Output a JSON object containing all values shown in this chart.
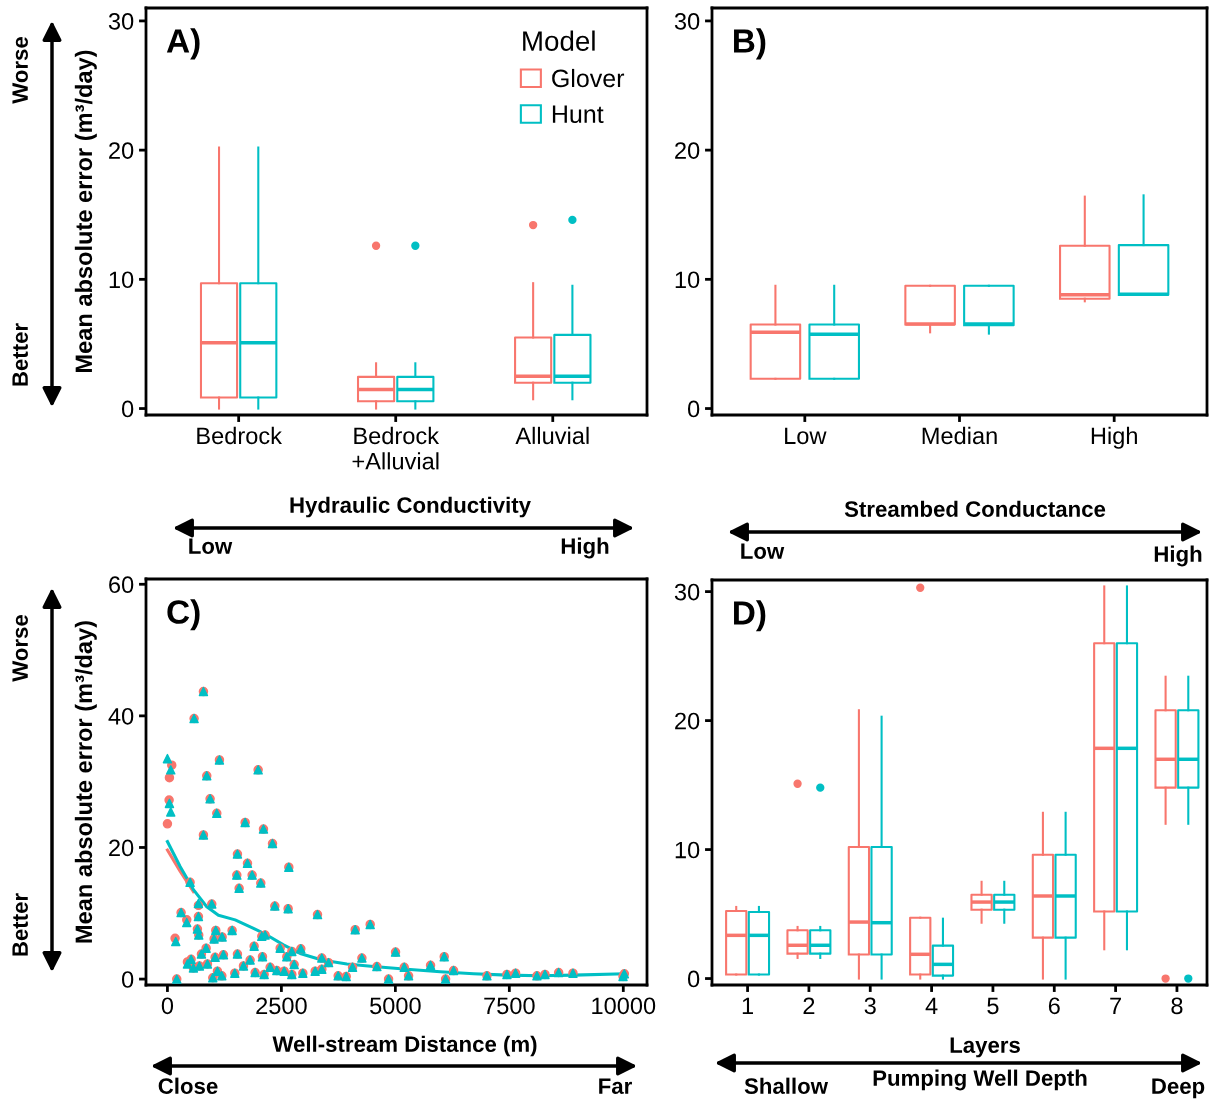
{
  "chart_data": [
    {
      "type": "box",
      "title": "A)",
      "categories": [
        "Bedrock",
        "Bedrock\n+Alluvial",
        "Alluvial"
      ],
      "ylabel": "Mean absolute error (m³/day)",
      "xlabel": "Hydraulic Conductivity",
      "ylim": [
        -0.5,
        31
      ],
      "yticks": [
        0,
        10,
        20,
        30
      ],
      "legend": "top right",
      "legend_title": "Model",
      "annotations": [
        "Worse",
        "Better",
        "Low",
        "High"
      ],
      "series": [
        {
          "name": "Glover",
          "color": "#f8766d",
          "boxes": [
            {
              "low": 0,
              "q1": 0.85,
              "median": 5.1,
              "q3": 9.7,
              "high": 20.2
            },
            {
              "low": 0,
              "q1": 0.56,
              "median": 1.47,
              "q3": 2.45,
              "high": 3.5,
              "outliers": [
                12.6
              ]
            },
            {
              "low": 0.72,
              "q1": 2.0,
              "median": 2.5,
              "q3": 5.5,
              "high": 9.7,
              "outliers": [
                14.2
              ]
            }
          ]
        },
        {
          "name": "Hunt",
          "color": "#00bfc4",
          "boxes": [
            {
              "low": 0,
              "q1": 0.85,
              "median": 5.1,
              "q3": 9.7,
              "high": 20.2
            },
            {
              "low": 0,
              "q1": 0.56,
              "median": 1.47,
              "q3": 2.45,
              "high": 3.5,
              "outliers": [
                12.6
              ]
            },
            {
              "low": 0.72,
              "q1": 2.0,
              "median": 2.5,
              "q3": 5.7,
              "high": 9.5,
              "outliers": [
                14.6
              ]
            }
          ]
        }
      ]
    },
    {
      "type": "box",
      "title": "B)",
      "categories": [
        "Low",
        "Median",
        "High"
      ],
      "xlabel": "Streambed Conductance",
      "ylim": [
        -0.5,
        31
      ],
      "yticks": [
        0,
        10,
        20,
        30
      ],
      "annotations": [
        "Low",
        "High"
      ],
      "series": [
        {
          "color": "#f8766d",
          "boxes": [
            {
              "low": 2.3,
              "q1": 2.3,
              "median": 5.9,
              "q3": 6.5,
              "high": 9.5
            },
            {
              "low": 5.9,
              "q1": 6.5,
              "median": 6.55,
              "q3": 9.5,
              "high": 9.5
            },
            {
              "low": 8.3,
              "q1": 8.5,
              "median": 8.8,
              "q3": 12.6,
              "high": 16.4
            }
          ]
        },
        {
          "color": "#00bfc4",
          "boxes": [
            {
              "low": 2.3,
              "q1": 2.3,
              "median": 5.75,
              "q3": 6.5,
              "high": 9.5
            },
            {
              "low": 5.8,
              "q1": 6.45,
              "median": 6.55,
              "q3": 9.5,
              "high": 9.5
            },
            {
              "low": 8.8,
              "q1": 8.8,
              "median": 8.85,
              "q3": 12.65,
              "high": 16.5
            }
          ]
        }
      ]
    },
    {
      "type": "scatter",
      "title": "C)",
      "ylabel": "Mean absolute error (m³/day)",
      "xlabel": "Well-stream Distance (m)",
      "xlim": [
        -470,
        10520
      ],
      "xticks": [
        0,
        2500,
        5000,
        7500,
        10000
      ],
      "ylim": [
        -0.9,
        60.8
      ],
      "yticks": [
        0,
        20,
        40,
        60
      ],
      "annotations": [
        "Worse",
        "Better",
        "Close",
        "Far"
      ],
      "series": [
        {
          "type": "scatter",
          "marker": "circle",
          "color": "#f8766d",
          "x": [
            0,
            95,
            44,
            37,
            790,
            585,
            1141,
            863,
            936,
            1083,
            1990,
            790,
            1705,
            2107,
            2305,
            1536,
            1756,
            1522,
            1858,
            1573,
            2048,
            2663,
            497,
            2356,
            2648,
            3292,
            4448,
            4119,
            300,
            424,
            168,
            680,
            680,
            973,
            658,
            687,
            1061,
            1024,
            1200,
            849,
            746,
            519,
            439,
            570,
            702,
            878,
            1046,
            1229,
            1097,
            1193,
            995,
            205,
            1419,
            1536,
            1902,
            2085,
            2070,
            2143,
            1814,
            1668,
            1478,
            1924,
            2122,
            2253,
            2400,
            2473,
            2619,
            2729,
            2780,
            2561,
            2729,
            2926,
            2970,
            3241,
            3387,
            3387,
            3534,
            3746,
            3922,
            4061,
            4266,
            4595,
            4851,
            5004,
            5195,
            5290,
            5772,
            6072,
            6102,
            6277,
            7009,
            7448,
            7638,
            8106,
            8282,
            8582,
            8896,
            9994,
            10023
          ],
          "values": [
            23.6,
            32.5,
            30.6,
            27.2,
            43.7,
            39.6,
            33.3,
            30.9,
            27.4,
            25.2,
            31.8,
            21.9,
            23.8,
            22.8,
            20.6,
            19.0,
            17.6,
            15.8,
            15.8,
            13.8,
            14.6,
            17.0,
            14.7,
            11.1,
            10.7,
            9.8,
            8.3,
            7.5,
            10.1,
            9.0,
            6.2,
            9.5,
            11.2,
            11.4,
            7.6,
            6.7,
            7.4,
            6.1,
            6.4,
            4.7,
            3.8,
            3.0,
            2.6,
            1.7,
            2.0,
            2.3,
            3.3,
            3.7,
            1.2,
            0.5,
            0.2,
            0,
            7.4,
            3.8,
            5.0,
            3.4,
            6.5,
            6.7,
            2.9,
            2.0,
            0.9,
            1.0,
            0.7,
            1.8,
            1.3,
            4.7,
            3.4,
            4.2,
            2.2,
            1.2,
            0.7,
            4.6,
            0.9,
            1.2,
            3.2,
            1.5,
            2.5,
            0.5,
            0.4,
            1.8,
            3.2,
            1.9,
            0,
            4.1,
            1.8,
            0.5,
            2.1,
            3.4,
            0,
            1.3,
            0.5,
            0.7,
            0.9,
            0.5,
            0.7,
            1.0,
            0.9,
            0.4,
            0.8
          ]
        },
        {
          "type": "scatter",
          "marker": "triangle",
          "color": "#00bfc4",
          "x": [
            0,
            73,
            44,
            73,
            790,
            585,
            1141,
            863,
            936,
            1083,
            1990,
            790,
            1705,
            2107,
            2305,
            1536,
            1756,
            1522,
            1858,
            1573,
            2048,
            2663,
            497,
            2356,
            2648,
            3292,
            4448,
            4119,
            300,
            424,
            183,
            680,
            680,
            973,
            658,
            687,
            1061,
            1024,
            1200,
            849,
            746,
            519,
            439,
            570,
            702,
            878,
            1046,
            1229,
            1097,
            1193,
            995,
            205,
            1419,
            1536,
            1902,
            2085,
            2070,
            2143,
            1814,
            1668,
            1478,
            1924,
            2122,
            2253,
            2400,
            2473,
            2619,
            2729,
            2780,
            2561,
            2729,
            2926,
            2970,
            3241,
            3387,
            3387,
            3534,
            3746,
            3922,
            4061,
            4266,
            4595,
            4851,
            5004,
            5195,
            5290,
            5772,
            6072,
            6102,
            6277,
            7009,
            7448,
            7638,
            8106,
            8282,
            8582,
            8896,
            9994,
            10023
          ],
          "values": [
            33.5,
            31.8,
            26.7,
            25.4,
            43.7,
            39.6,
            33.3,
            30.9,
            27.4,
            25.2,
            31.8,
            21.9,
            23.8,
            22.8,
            20.6,
            19.0,
            17.6,
            15.8,
            15.8,
            13.8,
            14.6,
            17.0,
            14.7,
            11.1,
            10.7,
            9.8,
            8.3,
            7.5,
            10.1,
            8.6,
            5.7,
            9.5,
            11.5,
            11.4,
            7.6,
            6.7,
            7.4,
            6.1,
            6.4,
            4.7,
            3.8,
            3.0,
            2.3,
            1.7,
            2.0,
            2.3,
            3.3,
            3.7,
            1.2,
            0.5,
            0.2,
            0,
            7.4,
            3.8,
            5.0,
            3.4,
            6.5,
            6.7,
            2.9,
            2.0,
            0.9,
            1.0,
            0.7,
            1.8,
            1.3,
            4.7,
            3.4,
            4.2,
            2.2,
            1.2,
            0.7,
            4.6,
            0.9,
            1.2,
            3.2,
            1.5,
            2.5,
            0.5,
            0.4,
            1.8,
            3.2,
            1.9,
            0,
            4.1,
            1.8,
            0.5,
            2.1,
            3.4,
            0,
            1.3,
            0.5,
            0.7,
            0.9,
            0.5,
            0.7,
            1.0,
            0.9,
            0.4,
            0.8
          ]
        },
        {
          "type": "line",
          "color": "#f8766d",
          "x": [
            0,
            278,
            570
          ],
          "values": [
            19.6,
            16.4,
            13.3
          ]
        },
        {
          "type": "line",
          "color": "#00bfc4",
          "x": [
            0,
            278,
            570,
            863,
            1119,
            1485,
            1888,
            2180,
            2546,
            2912,
            3387,
            3936,
            4521,
            5253,
            5985,
            6716,
            7448,
            8179,
            8911,
            10008
          ],
          "values": [
            20.9,
            17.1,
            13.6,
            11.0,
            9.7,
            9.0,
            7.7,
            6.7,
            5.2,
            3.9,
            2.9,
            2.3,
            1.9,
            1.5,
            1.1,
            0.8,
            0.6,
            0.5,
            0.6,
            0.8
          ]
        }
      ]
    },
    {
      "type": "box",
      "title": "D)",
      "categories": [
        "1",
        "2",
        "3",
        "4",
        "5",
        "6",
        "7",
        "8"
      ],
      "xlabel": "Layers",
      "ylim": [
        -0.5,
        30.9
      ],
      "yticks": [
        0,
        10,
        20,
        30
      ],
      "annotations": [
        "Pumping Well Depth",
        "Shallow",
        "Deep"
      ],
      "series": [
        {
          "color": "#f8766d",
          "boxes": [
            {
              "low": 0.31,
              "q1": 0.31,
              "median": 3.35,
              "q3": 5.24,
              "high": 5.55
            },
            {
              "low": 1.6,
              "q1": 1.93,
              "median": 2.58,
              "q3": 3.74,
              "high": 4.0,
              "outliers": [
                15.1
              ]
            },
            {
              "low": 0,
              "q1": 1.86,
              "median": 4.38,
              "q3": 10.2,
              "high": 20.8
            },
            {
              "low": 0,
              "q1": 0.31,
              "median": 1.88,
              "q3": 4.72,
              "high": 4.72,
              "outliers": [
                30.3
              ]
            },
            {
              "low": 4.33,
              "q1": 5.34,
              "median": 5.93,
              "q3": 6.5,
              "high": 7.5
            },
            {
              "low": 0,
              "q1": 3.17,
              "median": 6.4,
              "q3": 9.6,
              "high": 12.85
            },
            {
              "low": 2.27,
              "q1": 5.2,
              "median": 17.85,
              "q3": 26.0,
              "high": 30.4
            },
            {
              "low": 12.0,
              "q1": 14.8,
              "median": 17.0,
              "q3": 20.8,
              "high": 23.4,
              "outliers": [
                0
              ]
            }
          ]
        },
        {
          "color": "#00bfc4",
          "boxes": [
            {
              "low": 0.31,
              "q1": 0.31,
              "median": 3.35,
              "q3": 5.16,
              "high": 5.55
            },
            {
              "low": 1.6,
              "q1": 1.93,
              "median": 2.58,
              "q3": 3.74,
              "high": 4.0,
              "outliers": [
                14.8
              ]
            },
            {
              "low": 0,
              "q1": 1.86,
              "median": 4.33,
              "q3": 10.2,
              "high": 20.3
            },
            {
              "low": 0,
              "q1": 0.23,
              "median": 1.1,
              "q3": 2.55,
              "high": 4.64
            },
            {
              "low": 4.33,
              "q1": 5.34,
              "median": 5.93,
              "q3": 6.5,
              "high": 7.5
            },
            {
              "low": 0,
              "q1": 3.17,
              "median": 6.4,
              "q3": 9.6,
              "high": 12.85
            },
            {
              "low": 2.27,
              "q1": 5.2,
              "median": 17.85,
              "q3": 26.0,
              "high": 30.4
            },
            {
              "low": 12.0,
              "q1": 14.8,
              "median": 17.0,
              "q3": 20.8,
              "high": 23.4,
              "outliers": [
                0
              ]
            }
          ]
        }
      ]
    }
  ]
}
